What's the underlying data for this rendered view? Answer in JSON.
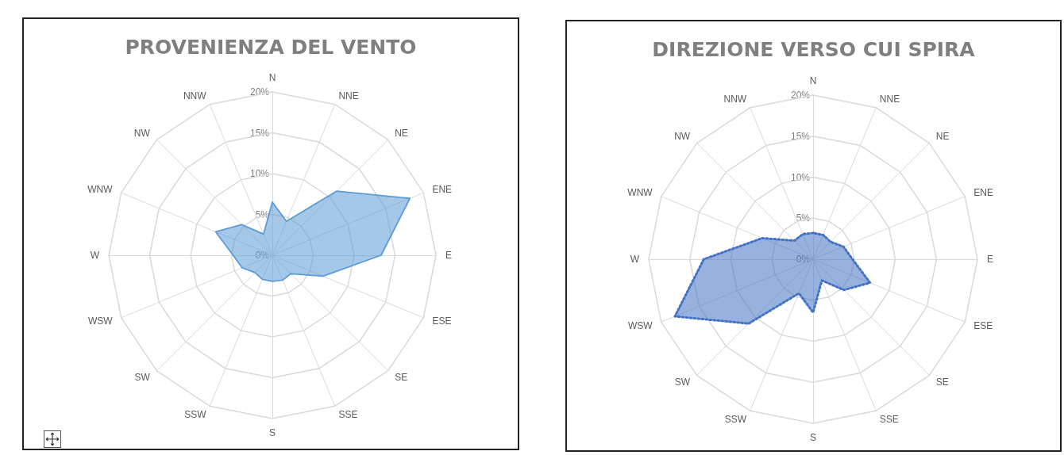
{
  "chart_data": [
    {
      "type": "radar",
      "title": "PROVENIENZA DEL VENTO",
      "categories": [
        "N",
        "NNE",
        "NE",
        "ENE",
        "E",
        "ESE",
        "SE",
        "SSE",
        "S",
        "SSW",
        "SW",
        "WSW",
        "W",
        "WNW",
        "NW",
        "NNW"
      ],
      "series": [
        {
          "color": "#5b9bd5",
          "values": [
            6.5,
            4.5,
            11.1,
            18.2,
            13.3,
            6.7,
            3.2,
            3.3,
            3.2,
            3.2,
            3.0,
            4.0,
            4.8,
            7.5,
            5.3,
            2.8
          ]
        }
      ],
      "ylim": [
        0,
        20
      ],
      "yticks": [
        {
          "value": 0,
          "label": "0%"
        },
        {
          "value": 5,
          "label": "5%"
        },
        {
          "value": 10,
          "label": "10%"
        },
        {
          "value": 15,
          "label": "15%"
        },
        {
          "value": 20,
          "label": "20%"
        }
      ],
      "grid": true,
      "marker": "none",
      "line_style": "solid"
    },
    {
      "type": "radar",
      "title": "DIREZIONE VERSO CUI SPIRA",
      "categories": [
        "N",
        "NNE",
        "NE",
        "ENE",
        "E",
        "ESE",
        "SE",
        "SSE",
        "S",
        "SSW",
        "SW",
        "WSW",
        "W",
        "WNW",
        "NW",
        "NNW"
      ],
      "series": [
        {
          "color": "#4472c4",
          "values": [
            3.2,
            3.2,
            3.0,
            4.0,
            4.8,
            7.5,
            5.3,
            2.8,
            6.5,
            4.5,
            11.1,
            18.2,
            13.3,
            6.7,
            3.2,
            3.3
          ]
        }
      ],
      "ylim": [
        0,
        20
      ],
      "yticks": [
        {
          "value": 0,
          "label": "0%"
        },
        {
          "value": 5,
          "label": "5%"
        },
        {
          "value": 10,
          "label": "10%"
        },
        {
          "value": 15,
          "label": "15%"
        },
        {
          "value": 20,
          "label": "20%"
        }
      ],
      "grid": true,
      "marker": "none",
      "line_style": "dotted"
    }
  ]
}
